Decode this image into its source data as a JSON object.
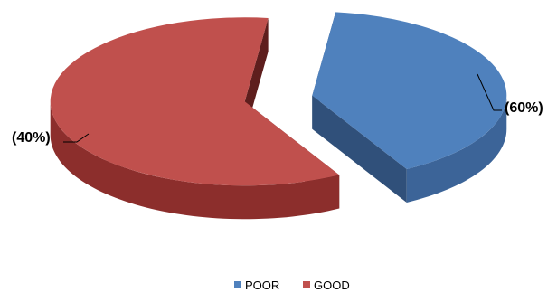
{
  "chart_data": {
    "type": "pie",
    "style": "3d-exploded",
    "legend_position": "bottom",
    "slices": [
      {
        "name": "POOR",
        "value": 40,
        "label": "(40%)",
        "color": "#4F81BD",
        "side_color": "#3C6498",
        "inner_color": "#30507A"
      },
      {
        "name": "GOOD",
        "value": 60,
        "label": "(60%)",
        "color": "#C0504D",
        "side_color": "#8C2E2C",
        "inner_color": "#5E1E1D"
      }
    ]
  }
}
